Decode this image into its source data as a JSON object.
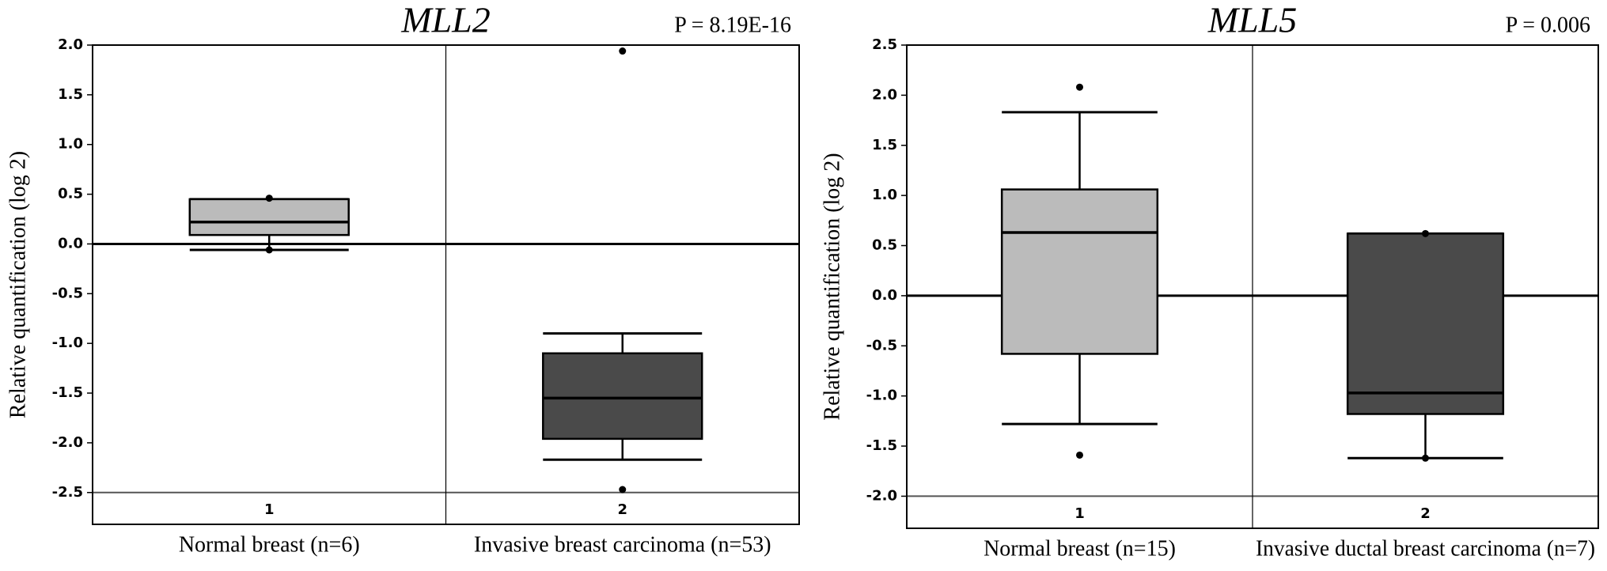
{
  "chart_data": [
    {
      "type": "box",
      "title": "MLL2",
      "annotation": "P = 8.19E-16",
      "ylabel": "Relative quantification (log 2)",
      "categories": [
        "1",
        "2"
      ],
      "group_labels": [
        "Normal breast (n=6)",
        "Invasive breast carcinoma (n=53)"
      ],
      "ylim": [
        -2.82,
        2.0
      ],
      "yticks": [
        {
          "value": -2.5,
          "label": "-2.5"
        },
        {
          "value": -2,
          "label": "-2.0"
        },
        {
          "value": -1.5,
          "label": "-1.5"
        },
        {
          "value": -1,
          "label": "-1.0"
        },
        {
          "value": -0.5,
          "label": "-0.5"
        },
        {
          "value": 0,
          "label": "0.0"
        },
        {
          "value": 0.5,
          "label": "0.5"
        },
        {
          "value": 1,
          "label": "1.0"
        },
        {
          "value": 1.5,
          "label": "1.5"
        },
        {
          "value": 2,
          "label": "2.0"
        }
      ],
      "boxes": [
        {
          "color": "#bbbbbb",
          "whisker_low": -0.06,
          "q1": 0.09,
          "median": 0.22,
          "q3": 0.45,
          "whisker_high": 0.45,
          "outliers": [
            0.46,
            -0.06
          ]
        },
        {
          "color": "#4a4a4a",
          "whisker_low": -2.17,
          "q1": -1.96,
          "median": -1.55,
          "q3": -1.1,
          "whisker_high": -0.9,
          "outliers": [
            1.94,
            -2.47
          ]
        }
      ]
    },
    {
      "type": "box",
      "title": "MLL5",
      "annotation": "P = 0.006",
      "ylabel": "Relative quantification (log 2)",
      "categories": [
        "1",
        "2"
      ],
      "group_labels": [
        "Normal breast (n=15)",
        "Invasive ductal breast carcinoma (n=7)"
      ],
      "ylim": [
        -2.32,
        2.5
      ],
      "yticks": [
        {
          "value": -2,
          "label": "-2.0"
        },
        {
          "value": -1.5,
          "label": "-1.5"
        },
        {
          "value": -1,
          "label": "-1.0"
        },
        {
          "value": -0.5,
          "label": "-0.5"
        },
        {
          "value": 0,
          "label": "0.0"
        },
        {
          "value": 0.5,
          "label": "0.5"
        },
        {
          "value": 1,
          "label": "1.0"
        },
        {
          "value": 1.5,
          "label": "1.5"
        },
        {
          "value": 2,
          "label": "2.0"
        },
        {
          "value": 2.5,
          "label": "2.5"
        }
      ],
      "boxes": [
        {
          "color": "#bbbbbb",
          "whisker_low": -1.28,
          "q1": -0.58,
          "median": 0.63,
          "q3": 1.06,
          "whisker_high": 1.83,
          "outliers": [
            2.08,
            -1.59
          ]
        },
        {
          "color": "#4a4a4a",
          "whisker_low": -1.62,
          "q1": -1.18,
          "median": -0.97,
          "q3": 0.62,
          "whisker_high": 0.62,
          "outliers": [
            0.62,
            -1.62
          ]
        }
      ]
    }
  ]
}
